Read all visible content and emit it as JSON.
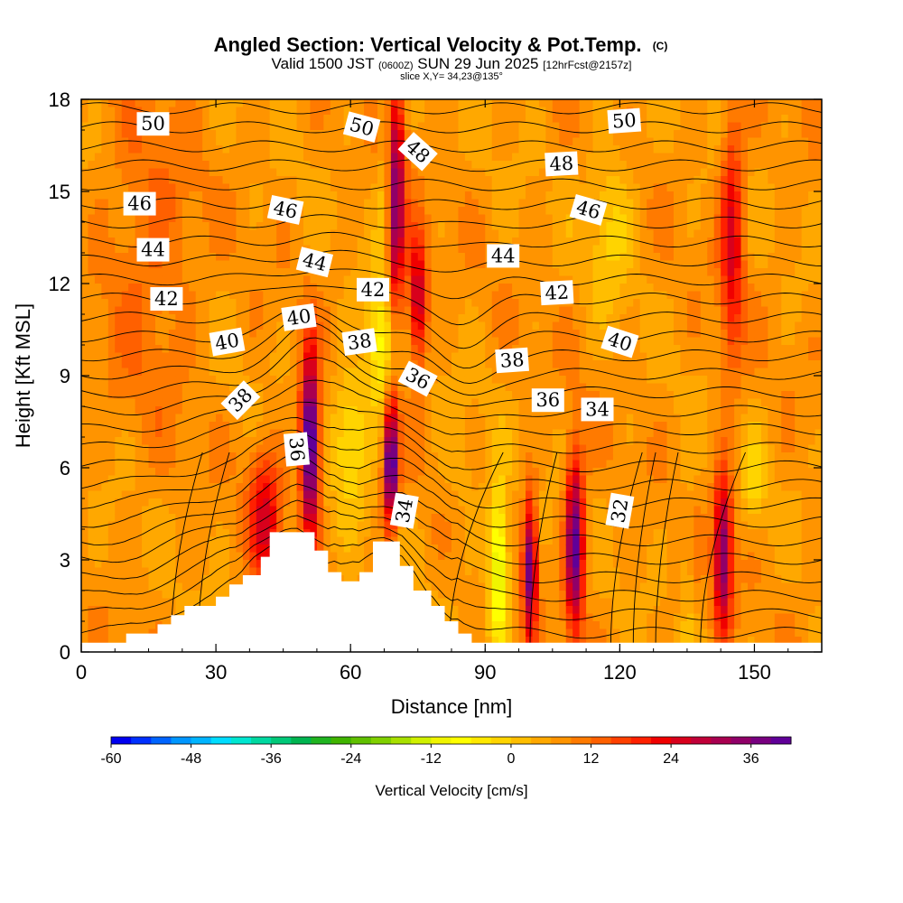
{
  "chart_data": {
    "type": "heatmap",
    "title": "Angled Section: Vertical Velocity & Pot.Temp.",
    "title_mark": "(C)",
    "subtitle_parts": [
      "Valid 1500 JST",
      "(0600Z)",
      "SUN 29 Jun 2025",
      "[12hrFcst@2157z]"
    ],
    "slice_text": "slice X,Y= 34,23@135°",
    "xlabel": "Distance [nm]",
    "ylabel": "Height [Kft MSL]",
    "xlim": [
      0,
      165
    ],
    "ylim": [
      0,
      18
    ],
    "x_ticks": [
      "0",
      "30",
      "60",
      "90",
      "120",
      "150"
    ],
    "y_ticks": [
      "0",
      "3",
      "6",
      "9",
      "12",
      "15",
      "18"
    ],
    "x_tick_values": [
      0,
      30,
      60,
      90,
      120,
      150
    ],
    "y_tick_values": [
      0,
      3,
      6,
      9,
      12,
      15,
      18
    ],
    "grid": false,
    "terrain": [
      [
        0,
        0.3
      ],
      [
        10,
        0.3
      ],
      [
        10,
        0.6
      ],
      [
        17,
        0.6
      ],
      [
        17,
        0.9
      ],
      [
        20,
        0.9
      ],
      [
        20,
        1.2
      ],
      [
        23,
        1.2
      ],
      [
        23,
        1.5
      ],
      [
        30,
        1.5
      ],
      [
        30,
        1.8
      ],
      [
        33,
        1.8
      ],
      [
        33,
        2.2
      ],
      [
        36,
        2.2
      ],
      [
        36,
        2.5
      ],
      [
        40,
        2.5
      ],
      [
        40,
        3.1
      ],
      [
        42,
        3.1
      ],
      [
        42,
        3.9
      ],
      [
        52,
        3.9
      ],
      [
        52,
        3.3
      ],
      [
        55,
        3.3
      ],
      [
        55,
        2.6
      ],
      [
        58,
        2.6
      ],
      [
        58,
        2.3
      ],
      [
        62,
        2.3
      ],
      [
        62,
        2.6
      ],
      [
        65,
        2.6
      ],
      [
        65,
        3.6
      ],
      [
        71,
        3.6
      ],
      [
        71,
        2.8
      ],
      [
        74,
        2.8
      ],
      [
        74,
        2.0
      ],
      [
        78,
        2.0
      ],
      [
        78,
        1.5
      ],
      [
        81,
        1.5
      ],
      [
        81,
        1.0
      ],
      [
        84,
        1.0
      ],
      [
        84,
        0.6
      ],
      [
        87,
        0.6
      ],
      [
        87,
        0.3
      ],
      [
        165,
        0.3
      ]
    ],
    "vertical_velocity_features": [
      {
        "x": 51,
        "y": 6.8,
        "sx": 2.0,
        "sy": 2.8,
        "w": 42
      },
      {
        "x": 69,
        "y": 6.2,
        "sx": 1.5,
        "sy": 2.0,
        "w": 40
      },
      {
        "x": 41,
        "y": 4.4,
        "sx": 3.5,
        "sy": 2.2,
        "w": 18
      },
      {
        "x": 70,
        "y": 14.5,
        "sx": 2.0,
        "sy": 4.0,
        "w": 30
      },
      {
        "x": 75,
        "y": 11.5,
        "sx": 2.0,
        "sy": 2.0,
        "w": 24
      },
      {
        "x": 100,
        "y": 2.8,
        "sx": 1.5,
        "sy": 2.2,
        "w": 32
      },
      {
        "x": 110,
        "y": 3.5,
        "sx": 2.0,
        "sy": 2.8,
        "w": 34
      },
      {
        "x": 143,
        "y": 3.2,
        "sx": 2.0,
        "sy": 2.5,
        "w": 30
      },
      {
        "x": 145,
        "y": 13.5,
        "sx": 2.5,
        "sy": 4.0,
        "w": 18
      },
      {
        "x": 93,
        "y": 2.8,
        "sx": 2.2,
        "sy": 2.5,
        "w": -22
      },
      {
        "x": 60,
        "y": 7.0,
        "sx": 4.0,
        "sy": 2.2,
        "w": -12
      },
      {
        "x": 67,
        "y": 10.0,
        "sx": 3.5,
        "sy": 2.2,
        "w": -16
      },
      {
        "x": 68,
        "y": 15.5,
        "sx": 1.5,
        "sy": 3.0,
        "w": -10
      },
      {
        "x": 118,
        "y": 14.0,
        "sx": 5.0,
        "sy": 2.5,
        "w": -8
      },
      {
        "x": 135,
        "y": 3.0,
        "sx": 0.8,
        "sy": 3.0,
        "w": -8
      },
      {
        "x": 150,
        "y": 5.5,
        "sx": 2.5,
        "sy": 1.5,
        "w": -8
      },
      {
        "x": 15,
        "y": 13.0,
        "sx": 10.0,
        "sy": 5.0,
        "w": 6
      },
      {
        "x": 85,
        "y": 6.0,
        "sx": 5.0,
        "sy": 2.0,
        "w": -3
      }
    ],
    "theta_contour_labels": [
      {
        "text": "50",
        "x": 16,
        "y": 17.2,
        "rot": 0
      },
      {
        "text": "50",
        "x": 62.5,
        "y": 17.1,
        "rot": 15
      },
      {
        "text": "48",
        "x": 75,
        "y": 16.3,
        "rot": 42
      },
      {
        "text": "50",
        "x": 121,
        "y": 17.3,
        "rot": -4
      },
      {
        "text": "48",
        "x": 107,
        "y": 15.9,
        "rot": -3
      },
      {
        "text": "46",
        "x": 13,
        "y": 14.6,
        "rot": 0
      },
      {
        "text": "46",
        "x": 45.5,
        "y": 14.4,
        "rot": 12
      },
      {
        "text": "46",
        "x": 113,
        "y": 14.4,
        "rot": 16
      },
      {
        "text": "44",
        "x": 16,
        "y": 13.1,
        "rot": 0
      },
      {
        "text": "44",
        "x": 52,
        "y": 12.7,
        "rot": 14
      },
      {
        "text": "44",
        "x": 94,
        "y": 12.9,
        "rot": 0
      },
      {
        "text": "42",
        "x": 19,
        "y": 11.5,
        "rot": 0
      },
      {
        "text": "42",
        "x": 65,
        "y": 11.8,
        "rot": 0
      },
      {
        "text": "42",
        "x": 106,
        "y": 11.7,
        "rot": -3
      },
      {
        "text": "40",
        "x": 32.5,
        "y": 10.1,
        "rot": -10
      },
      {
        "text": "40",
        "x": 48.5,
        "y": 10.9,
        "rot": -8
      },
      {
        "text": "40",
        "x": 120,
        "y": 10.1,
        "rot": 18
      },
      {
        "text": "38",
        "x": 62,
        "y": 10.1,
        "rot": -8
      },
      {
        "text": "38",
        "x": 96,
        "y": 9.5,
        "rot": -4
      },
      {
        "text": "36",
        "x": 75,
        "y": 8.9,
        "rot": 28
      },
      {
        "text": "36",
        "x": 104,
        "y": 8.2,
        "rot": 0
      },
      {
        "text": "34",
        "x": 115,
        "y": 7.9,
        "rot": 0
      },
      {
        "text": "38",
        "x": 35.5,
        "y": 8.2,
        "rot": -45
      },
      {
        "text": "36",
        "x": 48,
        "y": 6.6,
        "rot": 85
      },
      {
        "text": "34",
        "x": 72,
        "y": 4.6,
        "rot": -80
      },
      {
        "text": "32",
        "x": 120,
        "y": 4.6,
        "rot": -80
      }
    ],
    "colorbar": {
      "label": "Vertical Velocity [cm/s]",
      "tick_labels": [
        "-60",
        "-48",
        "-36",
        "-24",
        "-12",
        "0",
        "12",
        "24",
        "36"
      ],
      "tick_values": [
        -60,
        -48,
        -36,
        -24,
        -12,
        0,
        12,
        24,
        36
      ],
      "range": [
        -60,
        42
      ],
      "step": 3,
      "colors": [
        "#0000f0",
        "#0030ff",
        "#0064ff",
        "#0096ff",
        "#00b4ff",
        "#00dcff",
        "#00e6d0",
        "#00d8a0",
        "#00c878",
        "#00b450",
        "#20b420",
        "#40b400",
        "#60c000",
        "#80d000",
        "#a8e000",
        "#d0f000",
        "#f0f400",
        "#ffff00",
        "#ffe800",
        "#ffd400",
        "#ffbe00",
        "#ffa800",
        "#ff9400",
        "#ff7a00",
        "#ff6000",
        "#ff4000",
        "#ff2000",
        "#f00000",
        "#d8001c",
        "#c00038",
        "#a80050",
        "#900068",
        "#780080",
        "#600098"
      ]
    }
  }
}
